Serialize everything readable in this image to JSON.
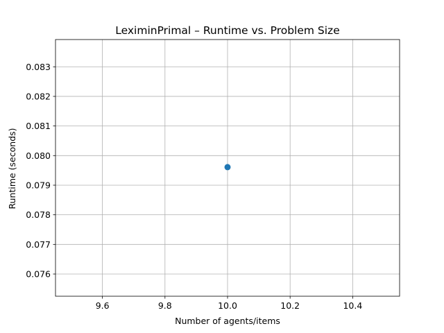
{
  "chart_data": {
    "type": "line",
    "title": "LeximinPrimal – Runtime vs. Problem Size",
    "xlabel": "Number of agents/items",
    "ylabel": "Runtime (seconds)",
    "x": [
      10.0
    ],
    "series": [
      {
        "values": [
          0.07961
        ],
        "color": "#1f77b4",
        "marker": "circle"
      }
    ],
    "xlim": [
      9.45,
      10.55
    ],
    "ylim": [
      0.07525,
      0.08392
    ],
    "xticks": [
      9.6,
      9.8,
      10.0,
      10.2,
      10.4
    ],
    "xtick_labels": [
      "9.6",
      "9.8",
      "10.0",
      "10.2",
      "10.4"
    ],
    "yticks": [
      0.076,
      0.077,
      0.078,
      0.079,
      0.08,
      0.081,
      0.082,
      0.083
    ],
    "ytick_labels": [
      "0.076",
      "0.077",
      "0.078",
      "0.079",
      "0.080",
      "0.081",
      "0.082",
      "0.083"
    ],
    "grid": true,
    "legend": false
  }
}
